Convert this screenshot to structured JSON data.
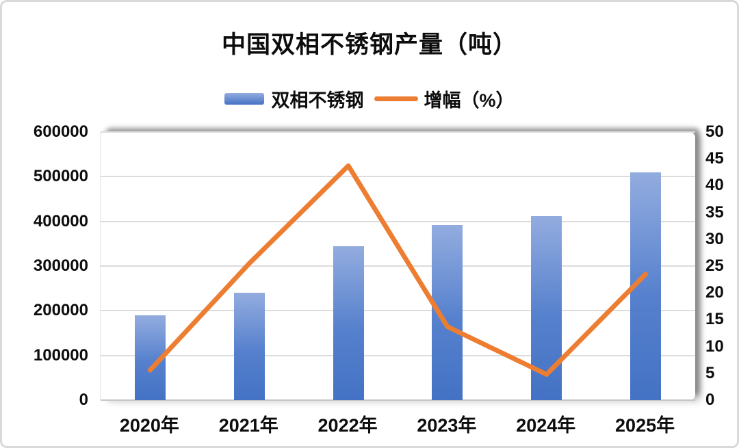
{
  "chart_data": {
    "type": "combo",
    "title": "中国双相不锈钢产量（吨）",
    "categories": [
      "2020年",
      "2021年",
      "2022年",
      "2023年",
      "2024年",
      "2025年"
    ],
    "series": [
      {
        "name": "双相不锈钢",
        "kind": "bar",
        "y_axis": "left",
        "values": [
          190000,
          240000,
          345000,
          392000,
          412000,
          509000
        ]
      },
      {
        "name": "增幅（%）",
        "kind": "line",
        "y_axis": "right",
        "values": [
          5.6,
          25.5,
          43.7,
          13.7,
          4.8,
          23.5
        ]
      }
    ],
    "left_axis": {
      "min": 0,
      "max": 600000,
      "tick_step": 100000,
      "ticks": [
        600000,
        500000,
        400000,
        300000,
        200000,
        100000,
        0
      ]
    },
    "right_axis": {
      "min": 0,
      "max": 50,
      "tick_step": 5,
      "ticks": [
        50,
        45,
        40,
        35,
        30,
        25,
        20,
        15,
        10,
        5,
        0
      ]
    },
    "grid": true,
    "legend_position": "top-center",
    "colors": {
      "bar_top": "#93ACDF",
      "bar_bottom": "#4472C4",
      "line": "#ED7D31",
      "gridline": "#DCDCDC",
      "text": "#0D0D0D",
      "frame_border": "#D9D9D9"
    }
  }
}
